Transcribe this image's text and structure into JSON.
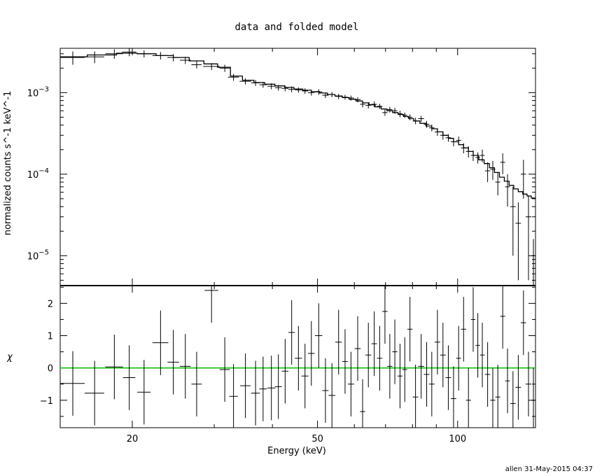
{
  "chart_data": [
    {
      "type": "line",
      "title": "data and folded model",
      "ylabel": "normalized counts s^-1 keV^-1",
      "xlabel": "",
      "xscale": "log",
      "yscale": "log",
      "xlim": [
        14.0,
        147.0
      ],
      "ylim": [
        4.3e-06,
        0.0035
      ],
      "x_ticks": [
        20,
        50,
        100
      ],
      "y_ticks": [
        {
          "value": 0.001,
          "base": "10",
          "exp": "−3"
        },
        {
          "value": 0.0001,
          "base": "10",
          "exp": "−4"
        },
        {
          "value": 1e-05,
          "base": "10",
          "exp": "−5"
        }
      ],
      "grid": false,
      "series": [
        {
          "kind": "data",
          "points": [
            [
              14.9,
              0.0027,
              0.9,
              0.0005
            ],
            [
              16.6,
              0.00275,
              0.8,
              0.00045
            ],
            [
              18.3,
              0.003,
              0.8,
              0.0004
            ],
            [
              19.7,
              0.00315,
              0.7,
              0.00035
            ],
            [
              21.2,
              0.003,
              0.7,
              0.0003
            ],
            [
              23.0,
              0.00285,
              0.9,
              0.0003
            ],
            [
              24.5,
              0.0027,
              0.7,
              0.00028
            ],
            [
              26.0,
              0.0025,
              0.7,
              0.00025
            ],
            [
              27.5,
              0.0022,
              0.7,
              0.00022
            ],
            [
              29.6,
              0.0021,
              1.2,
              0.0002
            ],
            [
              31.6,
              0.002,
              0.8,
              0.0002
            ],
            [
              33.0,
              0.00155,
              0.9,
              0.00015
            ],
            [
              35.0,
              0.00138,
              1.0,
              0.00012
            ],
            [
              36.8,
              0.00132,
              0.8,
              0.00011
            ],
            [
              38.2,
              0.00125,
              0.7,
              0.0001
            ],
            [
              39.8,
              0.0012,
              0.8,
              0.0001
            ],
            [
              41.2,
              0.00115,
              0.7,
              9e-05
            ],
            [
              42.6,
              0.00113,
              0.7,
              9e-05
            ],
            [
              44.0,
              0.0011,
              0.7,
              9e-05
            ],
            [
              45.5,
              0.00108,
              0.8,
              8e-05
            ],
            [
              47.0,
              0.00105,
              0.7,
              8e-05
            ],
            [
              48.5,
              0.001,
              0.8,
              8e-05
            ],
            [
              50.3,
              0.00102,
              0.9,
              8e-05
            ],
            [
              52.0,
              0.00093,
              0.8,
              7e-05
            ],
            [
              53.7,
              0.00095,
              0.9,
              7e-05
            ],
            [
              55.5,
              0.0009,
              0.9,
              7e-05
            ],
            [
              57.3,
              0.00088,
              0.8,
              6e-05
            ],
            [
              59.0,
              0.00086,
              0.9,
              6e-05
            ],
            [
              61.0,
              0.00082,
              0.9,
              6e-05
            ],
            [
              62.5,
              0.00072,
              0.8,
              6e-05
            ],
            [
              64.3,
              0.0007,
              0.9,
              6e-05
            ],
            [
              66.2,
              0.00072,
              0.9,
              6e-05
            ],
            [
              68.0,
              0.00068,
              0.9,
              5e-05
            ],
            [
              69.8,
              0.00057,
              0.9,
              5e-05
            ],
            [
              71.5,
              0.00062,
              0.9,
              5e-05
            ],
            [
              73.3,
              0.0006,
              0.9,
              5e-05
            ],
            [
              75.2,
              0.00055,
              0.9,
              5e-05
            ],
            [
              77.0,
              0.00053,
              0.9,
              4e-05
            ],
            [
              79.0,
              0.0005,
              1.0,
              4e-05
            ],
            [
              81.2,
              0.00045,
              1.1,
              4e-05
            ],
            [
              83.5,
              0.00048,
              1.2,
              4e-05
            ],
            [
              85.8,
              0.00041,
              1.2,
              4e-05
            ],
            [
              88.0,
              0.00037,
              1.2,
              3.5e-05
            ],
            [
              90.5,
              0.00033,
              1.2,
              3.5e-05
            ],
            [
              93.0,
              0.0003,
              1.3,
              3.5e-05
            ],
            [
              95.5,
              0.00028,
              1.3,
              3e-05
            ],
            [
              98.0,
              0.00025,
              1.3,
              3e-05
            ],
            [
              100.5,
              0.00026,
              1.2,
              3e-05
            ],
            [
              103.0,
              0.00021,
              1.3,
              3e-05
            ],
            [
              105.5,
              0.00019,
              1.3,
              3e-05
            ],
            [
              108.0,
              0.00017,
              1.2,
              2.5e-05
            ],
            [
              110.5,
              0.00016,
              1.2,
              2.5e-05
            ],
            [
              113.0,
              0.00017,
              1.3,
              3e-05
            ],
            [
              116.0,
              0.00011,
              1.5,
              3e-05
            ],
            [
              119.0,
              0.000115,
              1.5,
              3e-05
            ],
            [
              122.0,
              8e-05,
              1.5,
              2.5e-05
            ],
            [
              125.0,
              0.00014,
              1.5,
              4e-05
            ],
            [
              128.0,
              7e-05,
              1.5,
              3e-05
            ],
            [
              131.5,
              4e-05,
              1.8,
              3e-05
            ],
            [
              135.0,
              2.5e-05,
              1.8,
              2e-05
            ],
            [
              138.5,
              0.0001,
              1.8,
              5e-05
            ],
            [
              142.0,
              3e-05,
              2.0,
              2.5e-05
            ],
            [
              145.5,
              1e-05,
              1.5,
              6e-06
            ]
          ]
        },
        {
          "kind": "model",
          "steps": [
            [
              14.0,
              0.00275
            ],
            [
              16.0,
              0.0029
            ],
            [
              18.5,
              0.00305
            ],
            [
              20.5,
              0.003
            ],
            [
              22.5,
              0.00285
            ],
            [
              24.5,
              0.0027
            ],
            [
              26.5,
              0.00245
            ],
            [
              28.5,
              0.00225
            ],
            [
              30.5,
              0.00205
            ],
            [
              32.5,
              0.0016
            ],
            [
              34.5,
              0.00142
            ],
            [
              36.5,
              0.00133
            ],
            [
              38.5,
              0.00127
            ],
            [
              40.5,
              0.00121
            ],
            [
              42.5,
              0.00116
            ],
            [
              44.5,
              0.00111
            ],
            [
              46.5,
              0.00107
            ],
            [
              48.5,
              0.00103
            ],
            [
              50.5,
              0.00099
            ],
            [
              52.5,
              0.00095
            ],
            [
              54.5,
              0.00091
            ],
            [
              56.5,
              0.00087
            ],
            [
              58.5,
              0.00083
            ],
            [
              60.5,
              0.00079
            ],
            [
              62.5,
              0.00075
            ],
            [
              64.5,
              0.00071
            ],
            [
              66.5,
              0.00067
            ],
            [
              68.5,
              0.00063
            ],
            [
              70.5,
              0.0006
            ],
            [
              72.5,
              0.00057
            ],
            [
              74.5,
              0.00054
            ],
            [
              76.5,
              0.00051
            ],
            [
              78.5,
              0.00048
            ],
            [
              80.5,
              0.00045
            ],
            [
              83.0,
              0.00042
            ],
            [
              85.5,
              0.00039
            ],
            [
              88.0,
              0.00036
            ],
            [
              90.5,
              0.00033
            ],
            [
              93.0,
              0.0003
            ],
            [
              95.5,
              0.000275
            ],
            [
              98.0,
              0.00025
            ],
            [
              100.5,
              0.00023
            ],
            [
              103.0,
              0.00021
            ],
            [
              105.5,
              0.00019
            ],
            [
              108.0,
              0.00017
            ],
            [
              111.0,
              0.00015
            ],
            [
              114.0,
              0.000135
            ],
            [
              117.0,
              0.00012
            ],
            [
              120.0,
              0.000105
            ],
            [
              123.0,
              9.2e-05
            ],
            [
              126.0,
              8.2e-05
            ],
            [
              129.0,
              7.3e-05
            ],
            [
              132.0,
              6.6e-05
            ],
            [
              135.0,
              6.1e-05
            ],
            [
              138.0,
              5.7e-05
            ],
            [
              141.0,
              5.4e-05
            ],
            [
              144.0,
              5.1e-05
            ],
            [
              147.0,
              5e-05
            ]
          ]
        }
      ]
    },
    {
      "type": "scatter",
      "title": "",
      "ylabel": "χ",
      "xlabel": "Energy (keV)",
      "xscale": "log",
      "xlim": [
        14.0,
        147.0
      ],
      "ylim": [
        -1.85,
        2.55
      ],
      "x_ticks": [
        20,
        50,
        100
      ],
      "y_ticks": [
        -1,
        0,
        1,
        2
      ],
      "y_tick_labels": [
        "−1",
        "0",
        "1",
        "2"
      ],
      "zero_line_color": "#33cc33",
      "series": [
        {
          "kind": "residuals",
          "points": [
            [
              14.9,
              -0.48,
              0.9,
              1.0
            ],
            [
              16.6,
              -0.78,
              0.8,
              1.0
            ],
            [
              18.3,
              0.03,
              0.8,
              1.0
            ],
            [
              19.7,
              -0.3,
              0.6,
              1.0
            ],
            [
              21.2,
              -0.75,
              0.7,
              1.0
            ],
            [
              23.0,
              0.78,
              0.9,
              1.0
            ],
            [
              24.5,
              0.18,
              0.7,
              1.0
            ],
            [
              26.0,
              0.05,
              0.7,
              1.0
            ],
            [
              27.5,
              -0.5,
              0.7,
              1.0
            ],
            [
              29.6,
              2.4,
              1.0,
              1.0
            ],
            [
              31.6,
              -0.05,
              0.8,
              1.0
            ],
            [
              33.0,
              -0.88,
              0.7,
              1.0
            ],
            [
              35.0,
              -0.55,
              0.9,
              1.0
            ],
            [
              36.8,
              -0.78,
              0.8,
              1.0
            ],
            [
              38.2,
              -0.65,
              0.7,
              1.0
            ],
            [
              39.8,
              -0.62,
              0.8,
              1.0
            ],
            [
              41.2,
              -0.58,
              0.7,
              1.0
            ],
            [
              42.6,
              -0.1,
              0.7,
              1.0
            ],
            [
              44.0,
              1.1,
              0.7,
              1.0
            ],
            [
              45.5,
              0.3,
              0.8,
              1.0
            ],
            [
              47.0,
              -0.25,
              0.8,
              1.0
            ],
            [
              48.5,
              0.45,
              0.8,
              1.0
            ],
            [
              50.3,
              1.0,
              0.9,
              1.0
            ],
            [
              52.0,
              -0.7,
              0.8,
              1.0
            ],
            [
              53.7,
              -0.85,
              0.9,
              1.0
            ],
            [
              55.5,
              0.8,
              0.9,
              1.0
            ],
            [
              57.3,
              0.2,
              0.8,
              1.0
            ],
            [
              59.0,
              -0.5,
              0.9,
              1.0
            ],
            [
              61.0,
              0.6,
              0.9,
              1.0
            ],
            [
              62.5,
              -1.35,
              0.8,
              1.0
            ],
            [
              64.3,
              0.4,
              0.9,
              1.0
            ],
            [
              66.2,
              0.75,
              0.9,
              1.0
            ],
            [
              68.0,
              0.3,
              0.9,
              1.0
            ],
            [
              69.8,
              1.75,
              0.9,
              1.0
            ],
            [
              71.5,
              0.05,
              0.9,
              1.0
            ],
            [
              73.3,
              0.5,
              0.9,
              1.0
            ],
            [
              75.2,
              -0.25,
              0.9,
              1.0
            ],
            [
              77.0,
              -0.05,
              0.9,
              1.0
            ],
            [
              79.0,
              1.2,
              1.0,
              1.0
            ],
            [
              81.2,
              -0.9,
              1.1,
              1.0
            ],
            [
              83.5,
              0.05,
              1.2,
              1.0
            ],
            [
              85.8,
              -0.2,
              1.2,
              1.0
            ],
            [
              88.0,
              -0.5,
              1.2,
              1.0
            ],
            [
              90.5,
              0.8,
              1.2,
              1.0
            ],
            [
              93.0,
              0.4,
              1.3,
              1.0
            ],
            [
              95.5,
              -0.3,
              1.3,
              1.0
            ],
            [
              98.0,
              -0.95,
              1.3,
              1.0
            ],
            [
              100.5,
              0.3,
              1.2,
              1.0
            ],
            [
              103.0,
              1.2,
              1.3,
              1.0
            ],
            [
              105.5,
              -1.0,
              1.3,
              1.0
            ],
            [
              108.0,
              1.5,
              1.2,
              1.0
            ],
            [
              110.5,
              0.7,
              1.2,
              1.0
            ],
            [
              113.0,
              0.4,
              1.3,
              1.0
            ],
            [
              116.0,
              -0.2,
              1.5,
              1.0
            ],
            [
              119.0,
              -1.0,
              1.5,
              1.0
            ],
            [
              122.0,
              -0.9,
              1.5,
              1.0
            ],
            [
              125.0,
              1.6,
              1.5,
              1.0
            ],
            [
              128.0,
              -0.4,
              1.5,
              1.0
            ],
            [
              131.5,
              -1.1,
              1.8,
              1.0
            ],
            [
              135.0,
              -0.6,
              1.8,
              1.0
            ],
            [
              138.5,
              1.4,
              1.8,
              1.0
            ],
            [
              142.0,
              -0.5,
              2.0,
              1.0
            ],
            [
              145.5,
              -1.0,
              1.5,
              1.0
            ]
          ]
        }
      ]
    }
  ],
  "footer": "allen 31-May-2015 04:37"
}
